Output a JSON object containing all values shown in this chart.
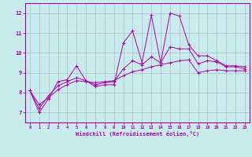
{
  "xlabel": "Windchill (Refroidissement éolien,°C)",
  "xlim": [
    -0.5,
    23.5
  ],
  "ylim": [
    6.5,
    12.5
  ],
  "yticks": [
    7,
    8,
    9,
    10,
    11,
    12
  ],
  "xticks": [
    0,
    1,
    2,
    3,
    4,
    5,
    6,
    7,
    8,
    9,
    10,
    11,
    12,
    13,
    14,
    15,
    16,
    17,
    18,
    19,
    20,
    21,
    22,
    23
  ],
  "background_color": "#c8ecec",
  "line_color": "#aa00aa",
  "grid_color": "#b0b8d0",
  "series1_y": [
    8.1,
    7.0,
    7.7,
    8.55,
    8.65,
    9.35,
    8.6,
    8.3,
    8.4,
    8.4,
    10.5,
    11.1,
    9.5,
    11.9,
    9.5,
    12.0,
    11.85,
    10.4,
    9.85,
    9.85,
    9.6,
    9.35,
    9.35,
    9.3
  ],
  "series2_y": [
    8.1,
    7.4,
    7.75,
    8.15,
    8.4,
    8.6,
    8.55,
    8.5,
    8.55,
    8.6,
    8.85,
    9.05,
    9.15,
    9.3,
    9.4,
    9.5,
    9.6,
    9.65,
    9.0,
    9.1,
    9.15,
    9.1,
    9.1,
    9.1
  ],
  "series3_y": [
    8.1,
    7.2,
    7.85,
    8.35,
    8.55,
    8.75,
    8.6,
    8.4,
    8.5,
    8.55,
    9.2,
    9.6,
    9.4,
    9.8,
    9.5,
    10.3,
    10.2,
    10.2,
    9.45,
    9.6,
    9.55,
    9.3,
    9.3,
    9.2
  ]
}
